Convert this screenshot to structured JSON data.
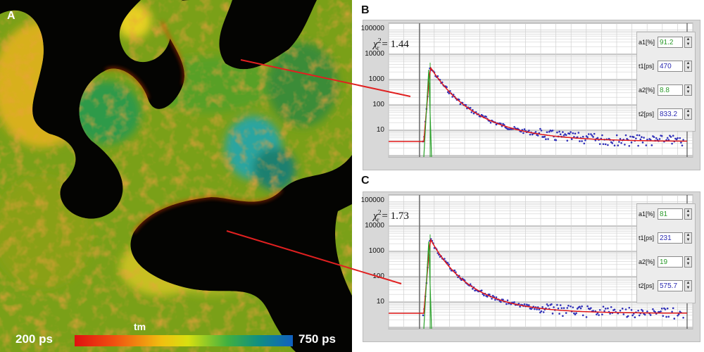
{
  "panels": {
    "a": "A",
    "b": "B",
    "c": "C"
  },
  "colorbar": {
    "min_label": "200 ps",
    "max_label": "750 ps",
    "title": "tm",
    "colors": [
      "#e01010",
      "#f0c010",
      "#40b040",
      "#1060c0"
    ]
  },
  "plots": [
    {
      "id": "b",
      "chi_label": "χ",
      "chi_value": "= 1.44",
      "y_ticks": [
        "100000",
        "10000",
        "1000",
        "100",
        "10"
      ],
      "params": [
        {
          "label": "a1[%]",
          "value": "91.2",
          "color": "green"
        },
        {
          "label": "t1[ps]",
          "value": "470",
          "color": "blue"
        },
        {
          "label": "a2[%]",
          "value": "8.8",
          "color": "green"
        },
        {
          "label": "t2[ps]",
          "value": "833.2",
          "color": "blue"
        }
      ]
    },
    {
      "id": "c",
      "chi_label": "χ",
      "chi_value": "= 1.73",
      "y_ticks": [
        "100000",
        "10000",
        "1000",
        "100",
        "10"
      ],
      "params": [
        {
          "label": "a1[%]",
          "value": "81",
          "color": "green"
        },
        {
          "label": "t1[ps]",
          "value": "231",
          "color": "blue"
        },
        {
          "label": "a2[%]",
          "value": "19",
          "color": "green"
        },
        {
          "label": "t2[ps]",
          "value": "575.7",
          "color": "blue"
        }
      ]
    }
  ]
}
